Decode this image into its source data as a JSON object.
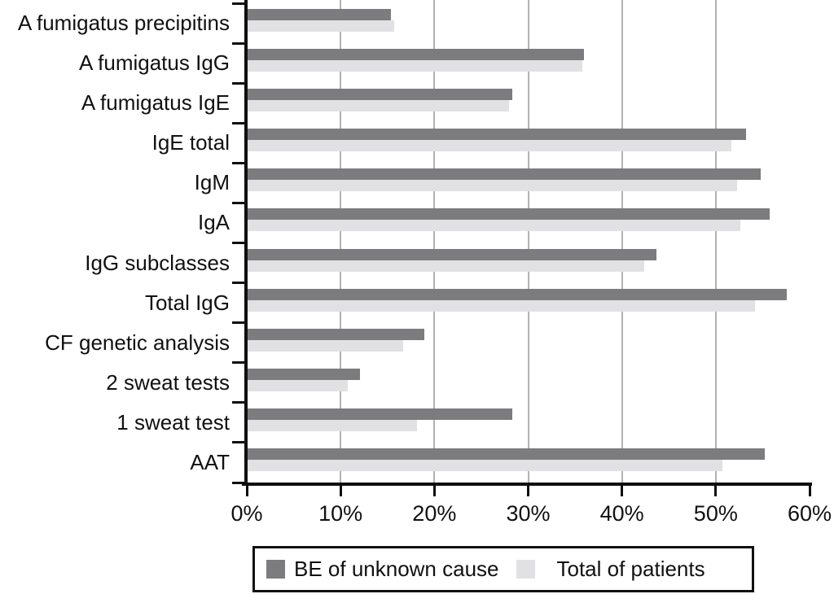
{
  "chart_data": {
    "type": "bar",
    "orientation": "horizontal",
    "title": "",
    "xlabel": "",
    "ylabel": "",
    "categories": [
      "A fumigatus precipitins",
      "A fumigatus IgG",
      "A fumigatus IgE",
      "IgE total",
      "IgM",
      "IgA",
      "IgG subclasses",
      "Total IgG",
      "CF genetic analysis",
      "2 sweat tests",
      "1 sweat test",
      "AAT"
    ],
    "series": [
      {
        "name": "BE of unknown cause",
        "color": "#7c7c7e",
        "values": [
          15.3,
          35.9,
          28.2,
          53.1,
          54.7,
          55.7,
          43.6,
          57.5,
          18.8,
          12.0,
          28.2,
          55.1
        ]
      },
      {
        "name": "Total of patients",
        "color": "#e1e1e3",
        "values": [
          15.6,
          35.7,
          27.9,
          51.6,
          52.2,
          52.5,
          42.3,
          54.1,
          16.6,
          10.7,
          18.1,
          50.6
        ]
      }
    ],
    "x_axis": {
      "min": 0,
      "max": 60,
      "tick_step": 10,
      "tick_labels": [
        "0%",
        "10%",
        "20%",
        "30%",
        "40%",
        "50%",
        "60%"
      ],
      "unit": "%"
    },
    "gridlines": {
      "show": true,
      "at": [
        10,
        20,
        30,
        40,
        50
      ],
      "color": "#b2b2b4"
    },
    "legend": {
      "position": "bottom",
      "entries": [
        "BE of unknown cause",
        "Total of patients"
      ]
    }
  },
  "colors": {
    "axis": "#0f0f0f",
    "text": "#111111",
    "background": "#ffffff",
    "legend_border": "#111111"
  }
}
